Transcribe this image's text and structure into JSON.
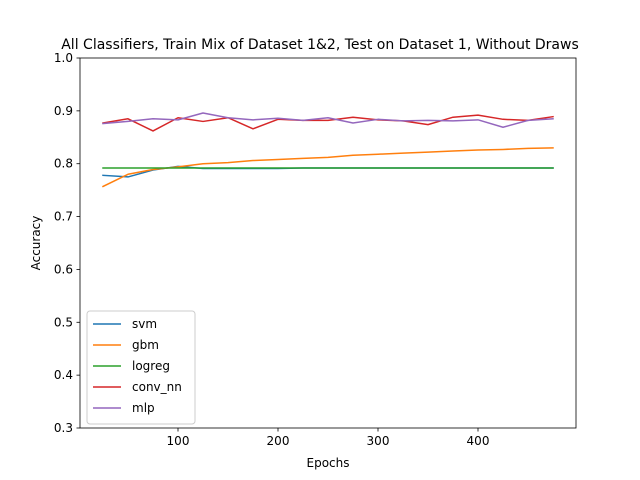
{
  "chart_data": {
    "type": "line",
    "title": "All Classifiers, Train Mix of Dataset 1&2, Test on Dataset 1, Without Draws",
    "xlabel": "Epochs",
    "ylabel": "Accuracy",
    "xlim": [
      2,
      498
    ],
    "ylim": [
      0.3,
      1.0
    ],
    "xticks": [
      100,
      200,
      300,
      400
    ],
    "yticks": [
      0.3,
      0.4,
      0.5,
      0.6,
      0.7,
      0.8,
      0.9,
      1.0
    ],
    "grid": false,
    "legend_position": "lower-left",
    "x": [
      25,
      50,
      75,
      100,
      125,
      150,
      175,
      200,
      225,
      250,
      275,
      300,
      325,
      350,
      375,
      400,
      425,
      450,
      475
    ],
    "series": [
      {
        "name": "svm",
        "color": "#1f77b4",
        "values": [
          0.778,
          0.775,
          0.788,
          0.795,
          0.791,
          0.791,
          0.791,
          0.791,
          0.792,
          0.792,
          0.792,
          0.792,
          0.792,
          0.792,
          0.792,
          0.792,
          0.792,
          0.792,
          0.792
        ]
      },
      {
        "name": "gbm",
        "color": "#ff7f0e",
        "values": [
          0.757,
          0.78,
          0.789,
          0.794,
          0.8,
          0.802,
          0.806,
          0.808,
          0.81,
          0.812,
          0.816,
          0.818,
          0.82,
          0.822,
          0.824,
          0.826,
          0.827,
          0.829,
          0.83
        ]
      },
      {
        "name": "logreg",
        "color": "#2ca02c",
        "values": [
          0.792,
          0.792,
          0.792,
          0.792,
          0.792,
          0.792,
          0.792,
          0.792,
          0.792,
          0.792,
          0.792,
          0.792,
          0.792,
          0.792,
          0.792,
          0.792,
          0.792,
          0.792,
          0.792
        ]
      },
      {
        "name": "conv_nn",
        "color": "#d62728",
        "values": [
          0.877,
          0.885,
          0.862,
          0.887,
          0.88,
          0.887,
          0.866,
          0.884,
          0.882,
          0.882,
          0.888,
          0.883,
          0.881,
          0.874,
          0.888,
          0.892,
          0.884,
          0.882,
          0.889
        ]
      },
      {
        "name": "mlp",
        "color": "#9467bd",
        "values": [
          0.876,
          0.88,
          0.885,
          0.883,
          0.896,
          0.887,
          0.883,
          0.886,
          0.882,
          0.887,
          0.877,
          0.884,
          0.881,
          0.882,
          0.881,
          0.883,
          0.869,
          0.882,
          0.885
        ]
      }
    ]
  }
}
